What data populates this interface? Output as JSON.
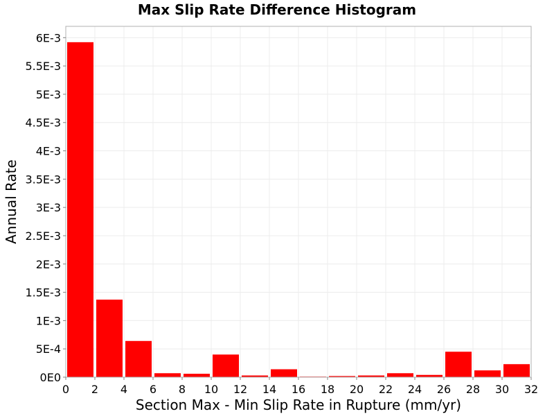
{
  "chart_data": {
    "type": "bar",
    "title": "Max Slip Rate Difference Histogram",
    "xlabel": "Section Max - Min Slip Rate in Rupture (mm/yr)",
    "ylabel": "Annual Rate",
    "xlim": [
      0,
      32
    ],
    "ylim": [
      0,
      0.0062
    ],
    "grid": true,
    "legend": "none",
    "bar_color": "#ff0000",
    "x_ticks": [
      0,
      2,
      4,
      6,
      8,
      10,
      12,
      14,
      16,
      18,
      20,
      22,
      24,
      26,
      28,
      30,
      32
    ],
    "y_ticks": [
      {
        "value": 0,
        "label": "0E0"
      },
      {
        "value": 0.0005,
        "label": "5E-4"
      },
      {
        "value": 0.001,
        "label": "1E-3"
      },
      {
        "value": 0.0015,
        "label": "1.5E-3"
      },
      {
        "value": 0.002,
        "label": "2E-3"
      },
      {
        "value": 0.0025,
        "label": "2.5E-3"
      },
      {
        "value": 0.003,
        "label": "3E-3"
      },
      {
        "value": 0.0035,
        "label": "3.5E-3"
      },
      {
        "value": 0.004,
        "label": "4E-3"
      },
      {
        "value": 0.0045,
        "label": "4.5E-3"
      },
      {
        "value": 0.005,
        "label": "5E-3"
      },
      {
        "value": 0.0055,
        "label": "5.5E-3"
      },
      {
        "value": 0.006,
        "label": "6E-3"
      }
    ],
    "bins": [
      {
        "x_start": 0,
        "x_end": 2,
        "value": 0.00592
      },
      {
        "x_start": 2,
        "x_end": 4,
        "value": 0.00137
      },
      {
        "x_start": 4,
        "x_end": 6,
        "value": 0.00064
      },
      {
        "x_start": 6,
        "x_end": 8,
        "value": 7e-05
      },
      {
        "x_start": 8,
        "x_end": 10,
        "value": 6e-05
      },
      {
        "x_start": 10,
        "x_end": 12,
        "value": 0.0004
      },
      {
        "x_start": 12,
        "x_end": 14,
        "value": 3e-05
      },
      {
        "x_start": 14,
        "x_end": 16,
        "value": 0.00014
      },
      {
        "x_start": 16,
        "x_end": 18,
        "value": 1e-05
      },
      {
        "x_start": 18,
        "x_end": 20,
        "value": 2e-05
      },
      {
        "x_start": 20,
        "x_end": 22,
        "value": 3e-05
      },
      {
        "x_start": 22,
        "x_end": 24,
        "value": 7e-05
      },
      {
        "x_start": 24,
        "x_end": 26,
        "value": 4e-05
      },
      {
        "x_start": 26,
        "x_end": 28,
        "value": 0.00045
      },
      {
        "x_start": 28,
        "x_end": 30,
        "value": 0.00012
      },
      {
        "x_start": 30,
        "x_end": 32,
        "value": 0.00023
      }
    ]
  }
}
